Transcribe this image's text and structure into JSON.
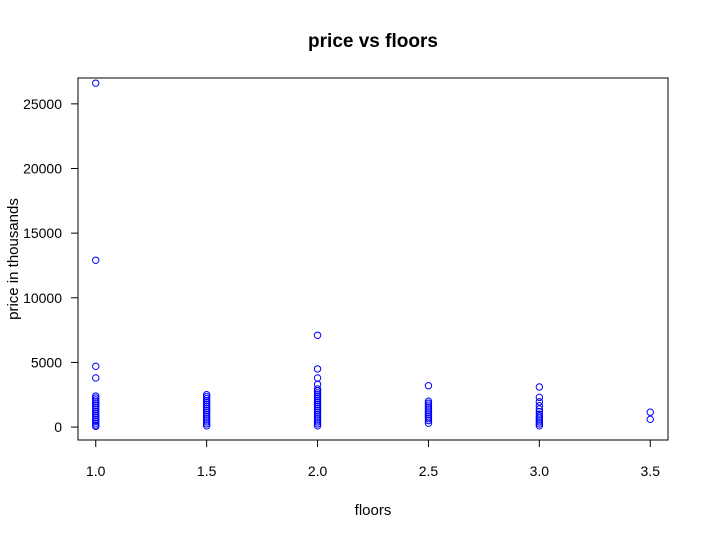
{
  "chart_data": {
    "type": "scatter",
    "title": "price vs floors",
    "xlabel": "floors",
    "ylabel": "price in thousands",
    "xlim": [
      0.92,
      3.58
    ],
    "ylim": [
      -1000,
      27000
    ],
    "x_ticks": [
      1.0,
      1.5,
      2.0,
      2.5,
      3.0,
      3.5
    ],
    "x_tick_labels": [
      "1.0",
      "1.5",
      "2.0",
      "2.5",
      "3.0",
      "3.5"
    ],
    "y_ticks": [
      0,
      5000,
      10000,
      15000,
      20000,
      25000
    ],
    "y_tick_labels": [
      "0",
      "5000",
      "10000",
      "15000",
      "20000",
      "25000"
    ],
    "grid": false,
    "point_color": "#0000ff",
    "series": [
      {
        "points": [
          [
            1.0,
            26600
          ],
          [
            1.0,
            12900
          ],
          [
            1.0,
            4700
          ],
          [
            1.0,
            3800
          ],
          [
            1.0,
            2400
          ],
          [
            1.0,
            2250
          ],
          [
            1.0,
            2100
          ],
          [
            1.0,
            1950
          ],
          [
            1.0,
            1800
          ],
          [
            1.0,
            1650
          ],
          [
            1.0,
            1500
          ],
          [
            1.0,
            1350
          ],
          [
            1.0,
            1200
          ],
          [
            1.0,
            1050
          ],
          [
            1.0,
            900
          ],
          [
            1.0,
            750
          ],
          [
            1.0,
            600
          ],
          [
            1.0,
            450
          ],
          [
            1.0,
            300
          ],
          [
            1.0,
            150
          ],
          [
            1.0,
            50
          ],
          [
            1.5,
            2500
          ],
          [
            1.5,
            2350
          ],
          [
            1.5,
            2200
          ],
          [
            1.5,
            2050
          ],
          [
            1.5,
            1900
          ],
          [
            1.5,
            1750
          ],
          [
            1.5,
            1600
          ],
          [
            1.5,
            1450
          ],
          [
            1.5,
            1300
          ],
          [
            1.5,
            1150
          ],
          [
            1.5,
            1000
          ],
          [
            1.5,
            850
          ],
          [
            1.5,
            700
          ],
          [
            1.5,
            550
          ],
          [
            1.5,
            400
          ],
          [
            1.5,
            250
          ],
          [
            1.5,
            100
          ],
          [
            2.0,
            7100
          ],
          [
            2.0,
            4500
          ],
          [
            2.0,
            3800
          ],
          [
            2.0,
            3300
          ],
          [
            2.0,
            2950
          ],
          [
            2.0,
            2800
          ],
          [
            2.0,
            2650
          ],
          [
            2.0,
            2500
          ],
          [
            2.0,
            2350
          ],
          [
            2.0,
            2200
          ],
          [
            2.0,
            2050
          ],
          [
            2.0,
            1900
          ],
          [
            2.0,
            1750
          ],
          [
            2.0,
            1600
          ],
          [
            2.0,
            1450
          ],
          [
            2.0,
            1300
          ],
          [
            2.0,
            1150
          ],
          [
            2.0,
            1000
          ],
          [
            2.0,
            850
          ],
          [
            2.0,
            700
          ],
          [
            2.0,
            550
          ],
          [
            2.0,
            400
          ],
          [
            2.0,
            250
          ],
          [
            2.0,
            100
          ],
          [
            2.5,
            3200
          ],
          [
            2.5,
            2000
          ],
          [
            2.5,
            1850
          ],
          [
            2.5,
            1700
          ],
          [
            2.5,
            1550
          ],
          [
            2.5,
            1400
          ],
          [
            2.5,
            1250
          ],
          [
            2.5,
            1100
          ],
          [
            2.5,
            950
          ],
          [
            2.5,
            800
          ],
          [
            2.5,
            650
          ],
          [
            2.5,
            500
          ],
          [
            2.5,
            300
          ],
          [
            3.0,
            3100
          ],
          [
            3.0,
            2300
          ],
          [
            3.0,
            1950
          ],
          [
            3.0,
            1650
          ],
          [
            3.0,
            1400
          ],
          [
            3.0,
            1200
          ],
          [
            3.0,
            1000
          ],
          [
            3.0,
            850
          ],
          [
            3.0,
            700
          ],
          [
            3.0,
            550
          ],
          [
            3.0,
            400
          ],
          [
            3.0,
            250
          ],
          [
            3.0,
            100
          ],
          [
            3.5,
            1150
          ],
          [
            3.5,
            600
          ]
        ]
      }
    ]
  }
}
